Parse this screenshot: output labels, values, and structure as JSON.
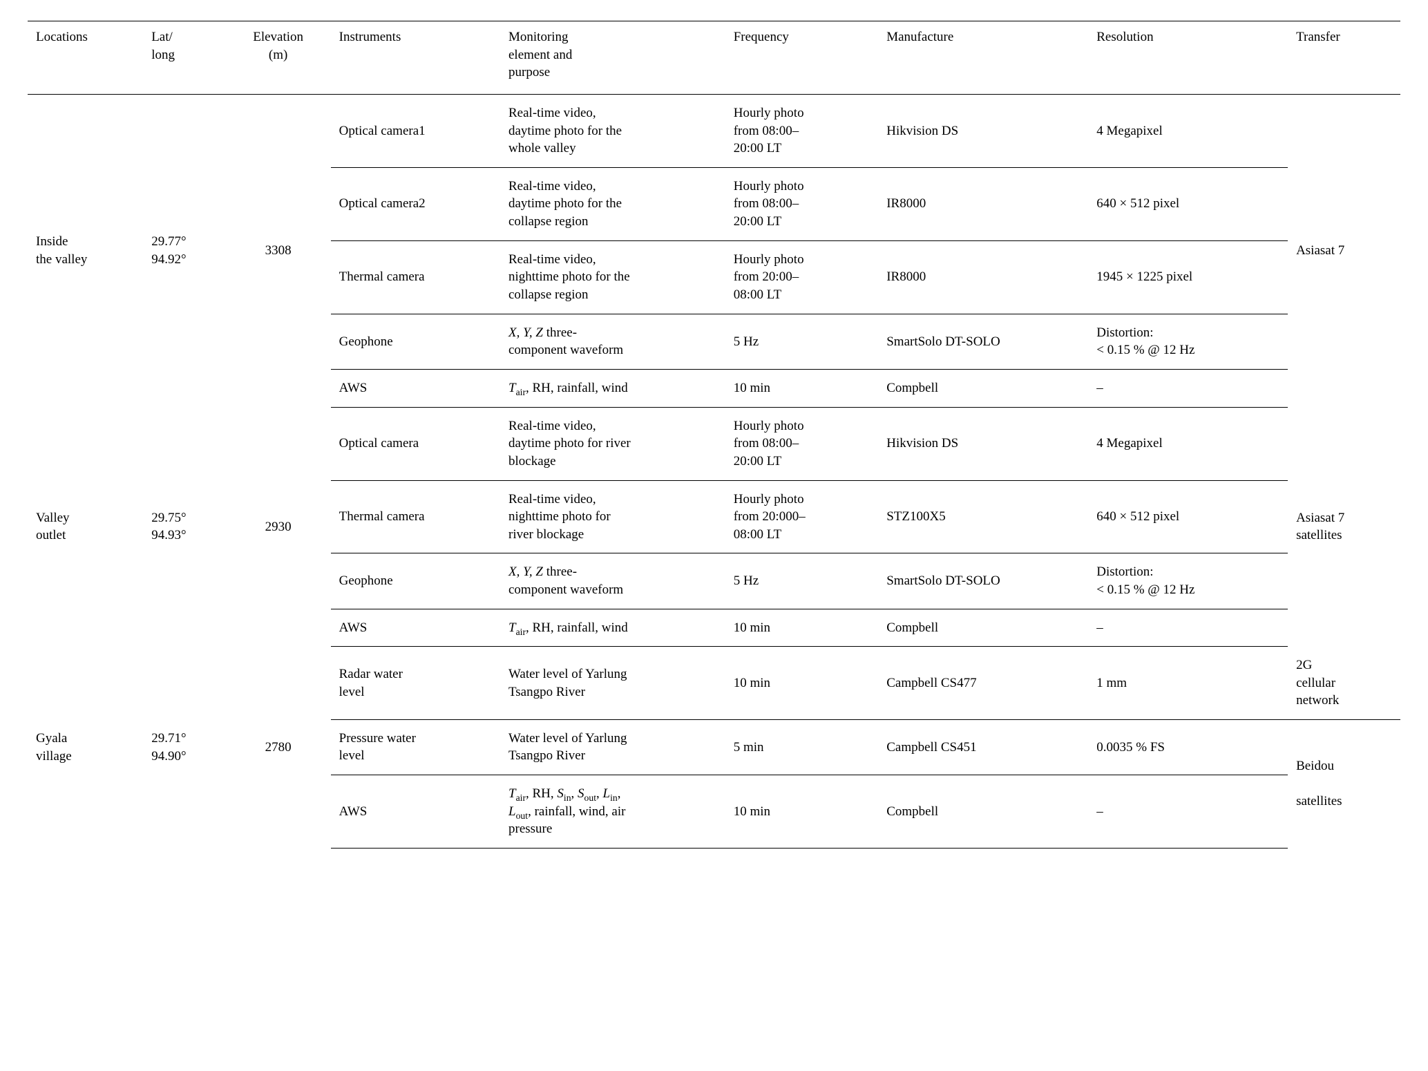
{
  "headers": {
    "locations": "Locations",
    "latlong_l1": "Lat/",
    "latlong_l2": "long",
    "elevation_l1": "Elevation",
    "elevation_l2": "(m)",
    "instruments": "Instruments",
    "monitoring_l1": "Monitoring",
    "monitoring_l2": "element and",
    "monitoring_l3": "purpose",
    "frequency": "Frequency",
    "manufacture": "Manufacture",
    "resolution": "Resolution",
    "transfer": "Transfer"
  },
  "loc1": {
    "name_l1": "Inside",
    "name_l2": "the valley",
    "lat": "29.77°",
    "lon": "94.92°",
    "elev": "3308",
    "transfer": "Asiasat 7",
    "r1": {
      "inst": "Optical camera1",
      "mon_l1": "Real-time video,",
      "mon_l2": "daytime photo for the",
      "mon_l3": "whole valley",
      "freq_l1": "Hourly photo",
      "freq_l2": "from 08:00–",
      "freq_l3": "20:00 LT",
      "manu": "Hikvision DS",
      "res": "4 Megapixel"
    },
    "r2": {
      "inst": "Optical camera2",
      "mon_l1": "Real-time video,",
      "mon_l2": "daytime photo for the",
      "mon_l3": "collapse region",
      "freq_l1": "Hourly photo",
      "freq_l2": "from 08:00–",
      "freq_l3": "20:00 LT",
      "manu": "IR8000",
      "res": "640 × 512 pixel"
    },
    "r3": {
      "inst": "Thermal camera",
      "mon_l1": "Real-time video,",
      "mon_l2": "nighttime photo for the",
      "mon_l3": "collapse region",
      "freq_l1": "Hourly photo",
      "freq_l2": "from 20:00–",
      "freq_l3": "08:00 LT",
      "manu": "IR8000",
      "res": "1945 × 1225 pixel"
    },
    "r4": {
      "inst": "Geophone",
      "mon_pre": "X, Y, Z",
      "mon_post": " three-",
      "mon_l2": "component waveform",
      "freq": "5 Hz",
      "manu": "SmartSolo DT-SOLO",
      "res_l1": "Distortion:",
      "res_l2": "< 0.15 % @ 12 Hz"
    },
    "r5": {
      "inst": "AWS",
      "mon_pre": "T",
      "mon_sub": "air",
      "mon_post": ", RH, rainfall, wind",
      "freq": "10 min",
      "manu": "Compbell",
      "res": "–"
    }
  },
  "loc2": {
    "name_l1": "Valley",
    "name_l2": "outlet",
    "lat": "29.75°",
    "lon": "94.93°",
    "elev": "2930",
    "transfer_l1": "Asiasat 7",
    "transfer_l2": "satellites",
    "r1": {
      "inst": "Optical camera",
      "mon_l1": "Real-time video,",
      "mon_l2": "daytime photo for river",
      "mon_l3": "blockage",
      "freq_l1": "Hourly photo",
      "freq_l2": "from 08:00–",
      "freq_l3": "20:00 LT",
      "manu": "Hikvision DS",
      "res": "4 Megapixel"
    },
    "r2": {
      "inst": "Thermal camera",
      "mon_l1": "Real-time video,",
      "mon_l2": "nighttime photo for",
      "mon_l3": "river blockage",
      "freq_l1": "Hourly photo",
      "freq_l2": "from 20:000–",
      "freq_l3": "08:00 LT",
      "manu": "STZ100X5",
      "res": "640 × 512 pixel"
    },
    "r3": {
      "inst": "Geophone",
      "mon_pre": "X, Y, Z",
      "mon_post": " three-",
      "mon_l2": "component waveform",
      "freq": "5 Hz",
      "manu": "SmartSolo DT-SOLO",
      "res_l1": "Distortion:",
      "res_l2": "< 0.15 % @ 12 Hz"
    },
    "r4": {
      "inst": "AWS",
      "mon_pre": "T",
      "mon_sub": "air",
      "mon_post": ", RH, rainfall, wind",
      "freq": "10 min",
      "manu": "Compbell",
      "res": "–"
    }
  },
  "loc3": {
    "name_l1": "Gyala",
    "name_l2": "village",
    "lat": "29.71°",
    "lon": "94.90°",
    "elev": "2780",
    "r1": {
      "inst_l1": "Radar water",
      "inst_l2": "level",
      "mon_l1": "Water level of Yarlung",
      "mon_l2": "Tsangpo River",
      "freq": "10 min",
      "manu": "Campbell CS477",
      "res": "1 mm",
      "trans_l1": "2G",
      "trans_l2": "cellular",
      "trans_l3": "network"
    },
    "r2": {
      "inst_l1": "Pressure water",
      "inst_l2": "level",
      "mon_l1": "Water level of Yarlung",
      "mon_l2": "Tsangpo River",
      "freq": "5 min",
      "manu": "Campbell CS451",
      "res": "0.0035 % FS"
    },
    "trans23_l1": "Beidou",
    "trans23_l2": "satellites",
    "r3": {
      "inst": "AWS",
      "mon_t": "T",
      "mon_tair": "air",
      "mon_a": ", RH, ",
      "mon_s": "S",
      "mon_sin": "in",
      "mon_b": ", ",
      "mon_sout": "out",
      "mon_c": ", ",
      "mon_l": "L",
      "mon_lin": "in",
      "mon_d": ",",
      "mon_lout": "out",
      "mon_e": ", rainfall, wind, air",
      "mon_l3": "pressure",
      "freq": "10 min",
      "manu": "Compbell",
      "res": "–"
    }
  }
}
